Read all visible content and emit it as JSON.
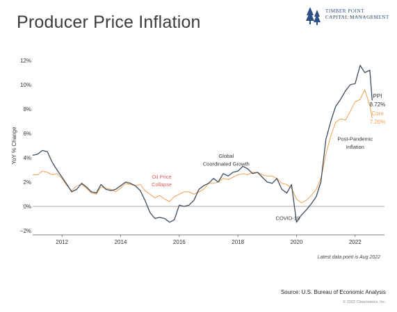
{
  "title": "Producer Price Inflation",
  "logo": {
    "line1": "TIMBER POINT",
    "line2": "CAPITAL MANAGEMENT"
  },
  "chart_data": {
    "type": "line",
    "ylabel": "YoY % Change",
    "xlabel": "",
    "ylim": [
      -2,
      12
    ],
    "xlim": [
      2011.0,
      2023.0
    ],
    "yticks": [
      -2,
      0,
      2,
      4,
      6,
      8,
      10,
      12
    ],
    "ytick_labels": [
      "−2%",
      "0%",
      "2%",
      "4%",
      "6%",
      "8%",
      "10%",
      "12%"
    ],
    "xticks": [
      2012,
      2014,
      2016,
      2018,
      2020,
      2022
    ],
    "xtick_labels": [
      "2012",
      "2014",
      "2016",
      "2018",
      "2020",
      "2022"
    ],
    "grid": false,
    "zero_line": true,
    "series": [
      {
        "name": "PPI",
        "color": "#3d4a5a",
        "end_label_value": "8.72%",
        "x": [
          2011.0,
          2011.17,
          2011.33,
          2011.5,
          2011.67,
          2011.83,
          2012.0,
          2012.17,
          2012.33,
          2012.5,
          2012.67,
          2012.83,
          2013.0,
          2013.17,
          2013.33,
          2013.5,
          2013.67,
          2013.83,
          2014.0,
          2014.17,
          2014.33,
          2014.5,
          2014.67,
          2014.83,
          2015.0,
          2015.17,
          2015.33,
          2015.5,
          2015.67,
          2015.83,
          2016.0,
          2016.17,
          2016.33,
          2016.5,
          2016.67,
          2016.83,
          2017.0,
          2017.17,
          2017.33,
          2017.5,
          2017.67,
          2017.83,
          2018.0,
          2018.17,
          2018.33,
          2018.5,
          2018.67,
          2018.83,
          2019.0,
          2019.17,
          2019.33,
          2019.5,
          2019.67,
          2019.83,
          2020.0,
          2020.17,
          2020.33,
          2020.5,
          2020.67,
          2020.83,
          2021.0,
          2021.17,
          2021.33,
          2021.5,
          2021.67,
          2021.83,
          2022.0,
          2022.17,
          2022.33,
          2022.5,
          2022.58
        ],
        "values": [
          4.2,
          4.3,
          4.6,
          4.5,
          3.6,
          3.0,
          2.4,
          1.8,
          1.2,
          1.4,
          1.9,
          1.6,
          1.2,
          1.1,
          1.8,
          1.4,
          1.3,
          1.4,
          1.7,
          2.0,
          1.9,
          1.7,
          1.3,
          0.5,
          -0.5,
          -1.0,
          -0.9,
          -1.0,
          -1.3,
          -1.1,
          0.1,
          0.0,
          0.1,
          0.5,
          1.4,
          1.7,
          1.9,
          2.3,
          2.0,
          2.7,
          2.5,
          2.8,
          2.9,
          3.3,
          3.1,
          2.7,
          2.8,
          2.4,
          2.0,
          1.9,
          2.3,
          1.4,
          1.1,
          1.8,
          -1.3,
          -0.7,
          -0.3,
          0.2,
          0.8,
          2.0,
          5.5,
          7.0,
          8.2,
          8.8,
          9.5,
          10.0,
          10.1,
          11.6,
          11.0,
          11.2,
          8.72
        ]
      },
      {
        "name": "Core",
        "color": "#f0a050",
        "end_label_value": "7.26%",
        "x": [
          2011.0,
          2011.17,
          2011.33,
          2011.5,
          2011.67,
          2011.83,
          2012.0,
          2012.17,
          2012.33,
          2012.5,
          2012.67,
          2012.83,
          2013.0,
          2013.17,
          2013.33,
          2013.5,
          2013.67,
          2013.83,
          2014.0,
          2014.17,
          2014.33,
          2014.5,
          2014.67,
          2014.83,
          2015.0,
          2015.17,
          2015.33,
          2015.5,
          2015.67,
          2015.83,
          2016.0,
          2016.17,
          2016.33,
          2016.5,
          2016.67,
          2016.83,
          2017.0,
          2017.17,
          2017.33,
          2017.5,
          2017.67,
          2017.83,
          2018.0,
          2018.17,
          2018.33,
          2018.5,
          2018.67,
          2018.83,
          2019.0,
          2019.17,
          2019.33,
          2019.5,
          2019.67,
          2019.83,
          2020.0,
          2020.17,
          2020.33,
          2020.5,
          2020.67,
          2020.83,
          2021.0,
          2021.17,
          2021.33,
          2021.5,
          2021.67,
          2021.83,
          2022.0,
          2022.17,
          2022.33,
          2022.5,
          2022.58
        ],
        "values": [
          2.6,
          2.6,
          2.9,
          2.8,
          2.6,
          2.7,
          2.3,
          1.7,
          1.3,
          1.7,
          1.8,
          1.5,
          1.1,
          1.0,
          1.6,
          1.5,
          1.4,
          1.2,
          1.5,
          1.9,
          1.8,
          1.7,
          1.8,
          1.3,
          1.0,
          0.7,
          0.9,
          0.6,
          0.4,
          0.8,
          1.0,
          1.2,
          1.2,
          1.0,
          1.2,
          1.4,
          1.9,
          1.9,
          2.0,
          2.3,
          2.2,
          2.4,
          2.6,
          2.7,
          2.6,
          2.8,
          2.8,
          2.6,
          2.5,
          2.5,
          2.3,
          1.9,
          1.8,
          1.5,
          0.6,
          0.3,
          0.5,
          0.9,
          1.4,
          2.3,
          4.3,
          5.8,
          6.9,
          7.2,
          7.1,
          7.8,
          8.6,
          8.8,
          9.6,
          8.3,
          7.26
        ]
      }
    ],
    "annotations": [
      {
        "text": "Oil Price",
        "x": 2015.4,
        "y": 2.3,
        "color": "#e05b5b"
      },
      {
        "text": "Collapse",
        "x": 2015.4,
        "y": 1.65,
        "color": "#e05b5b"
      },
      {
        "text": "Global",
        "x": 2017.6,
        "y": 4.0,
        "color": "#333333"
      },
      {
        "text": "Coordinated Growth",
        "x": 2017.6,
        "y": 3.35,
        "color": "#333333"
      },
      {
        "text": "COVID-19",
        "x": 2019.7,
        "y": -1.1,
        "color": "#333333"
      },
      {
        "text": "Post-Pandemic",
        "x": 2022.0,
        "y": 5.4,
        "color": "#333333"
      },
      {
        "text": "Inflation",
        "x": 2022.0,
        "y": 4.75,
        "color": "#333333"
      }
    ]
  },
  "note": "Latest data point is Aug 2022",
  "source": "Source: U.S. Bureau of Economic Analysis",
  "copyright": "© 2022 Clearnomics, Inc."
}
